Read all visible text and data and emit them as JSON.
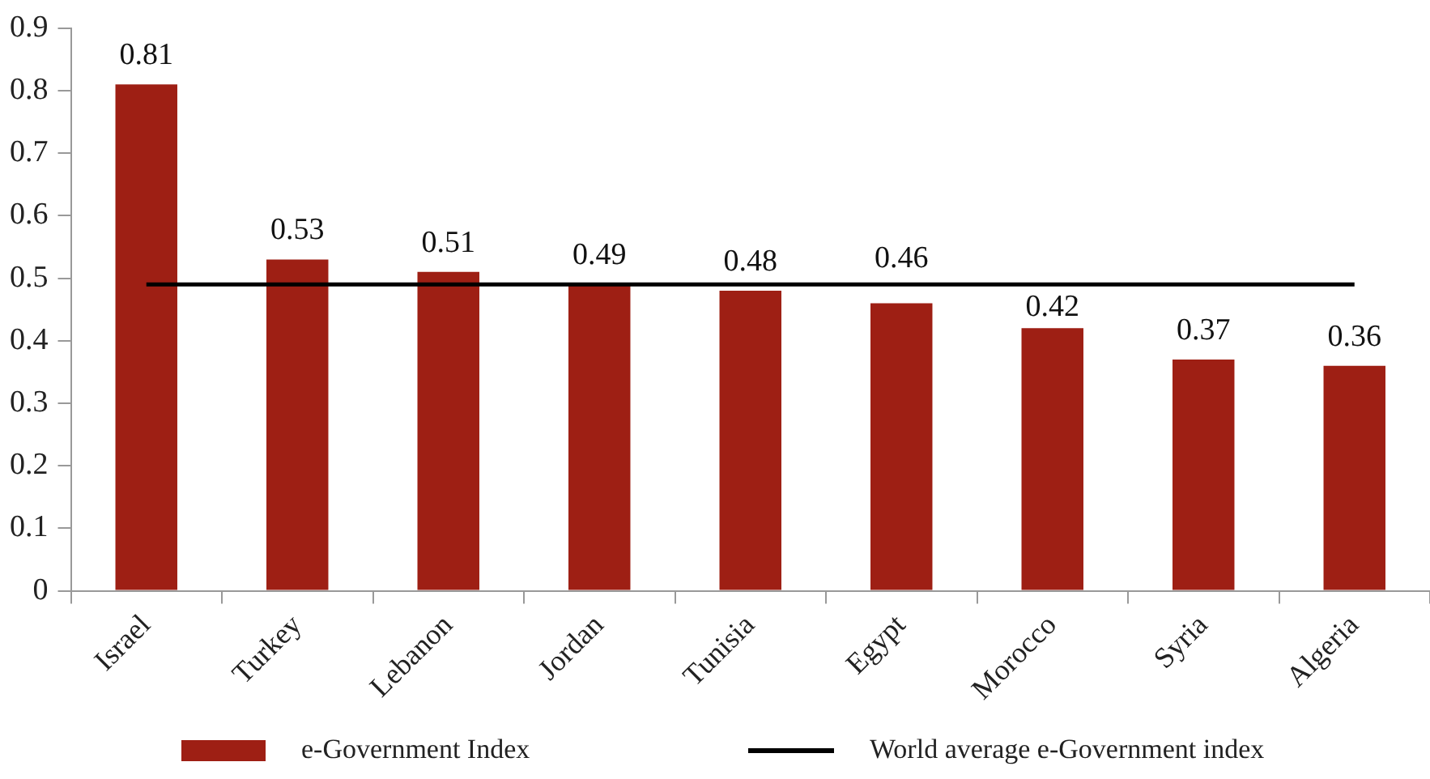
{
  "chart_data": {
    "type": "bar",
    "categories": [
      "Israel",
      "Turkey",
      "Lebanon",
      "Jordan",
      "Tunisia",
      "Egypt",
      "Morocco",
      "Syria",
      "Algeria"
    ],
    "series": [
      {
        "name": "e-Government Index",
        "color": "#9e1f14",
        "values": [
          0.81,
          0.53,
          0.51,
          0.49,
          0.48,
          0.46,
          0.42,
          0.37,
          0.36
        ],
        "value_labels": [
          "0.81",
          "0.53",
          "0.51",
          "0.49",
          "0.48",
          "0.46",
          "0.42",
          "0.37",
          "0.36"
        ]
      },
      {
        "name": "World average e-Government index",
        "type": "line",
        "color": "#000000",
        "values": [
          0.49,
          0.49,
          0.49,
          0.49,
          0.49,
          0.49,
          0.49,
          0.49,
          0.49
        ]
      }
    ],
    "ylim": [
      0,
      0.9
    ],
    "yticks": [
      0,
      0.1,
      0.2,
      0.3,
      0.4,
      0.5,
      0.6,
      0.7,
      0.8,
      0.9
    ],
    "grid": false,
    "legend": "bottom",
    "marker": "none",
    "line_style": "solid"
  }
}
